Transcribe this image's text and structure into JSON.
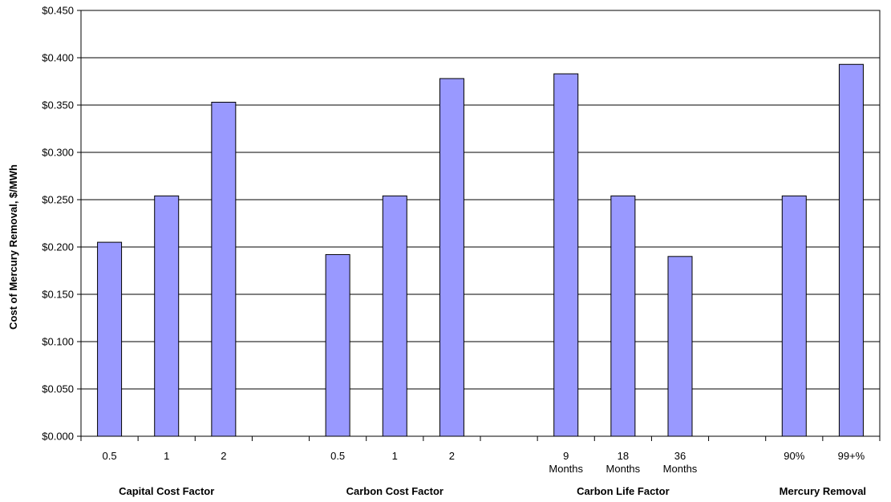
{
  "chart_data": {
    "type": "bar",
    "title": "",
    "ylabel": "Cost of Mercury Removal, $/MWh",
    "ylim": [
      0,
      0.45
    ],
    "yticks": [
      "$0.000",
      "$0.050",
      "$0.100",
      "$0.150",
      "$0.200",
      "$0.250",
      "$0.300",
      "$0.350",
      "$0.400",
      "$0.450"
    ],
    "grid": true,
    "legend": "none",
    "bar_color": "#9999ff",
    "categories": [
      [
        "0.5"
      ],
      [
        "1"
      ],
      [
        "2"
      ],
      [
        ""
      ],
      [
        "0.5"
      ],
      [
        "1"
      ],
      [
        "2"
      ],
      [
        ""
      ],
      [
        "9",
        "Months"
      ],
      [
        "18",
        "Months"
      ],
      [
        "36",
        "Months"
      ],
      [
        ""
      ],
      [
        "90%"
      ],
      [
        "99+%"
      ]
    ],
    "values": [
      0.205,
      0.254,
      0.353,
      null,
      0.192,
      0.254,
      0.378,
      null,
      0.383,
      0.254,
      0.19,
      null,
      0.254,
      0.393
    ],
    "groups": [
      {
        "label": "Capital Cost Factor",
        "start": 0,
        "end": 2
      },
      {
        "label": "Carbon Cost Factor",
        "start": 4,
        "end": 6
      },
      {
        "label": "Carbon Life Factor",
        "start": 8,
        "end": 10
      },
      {
        "label": "Mercury Removal",
        "start": 12,
        "end": 13
      }
    ]
  }
}
